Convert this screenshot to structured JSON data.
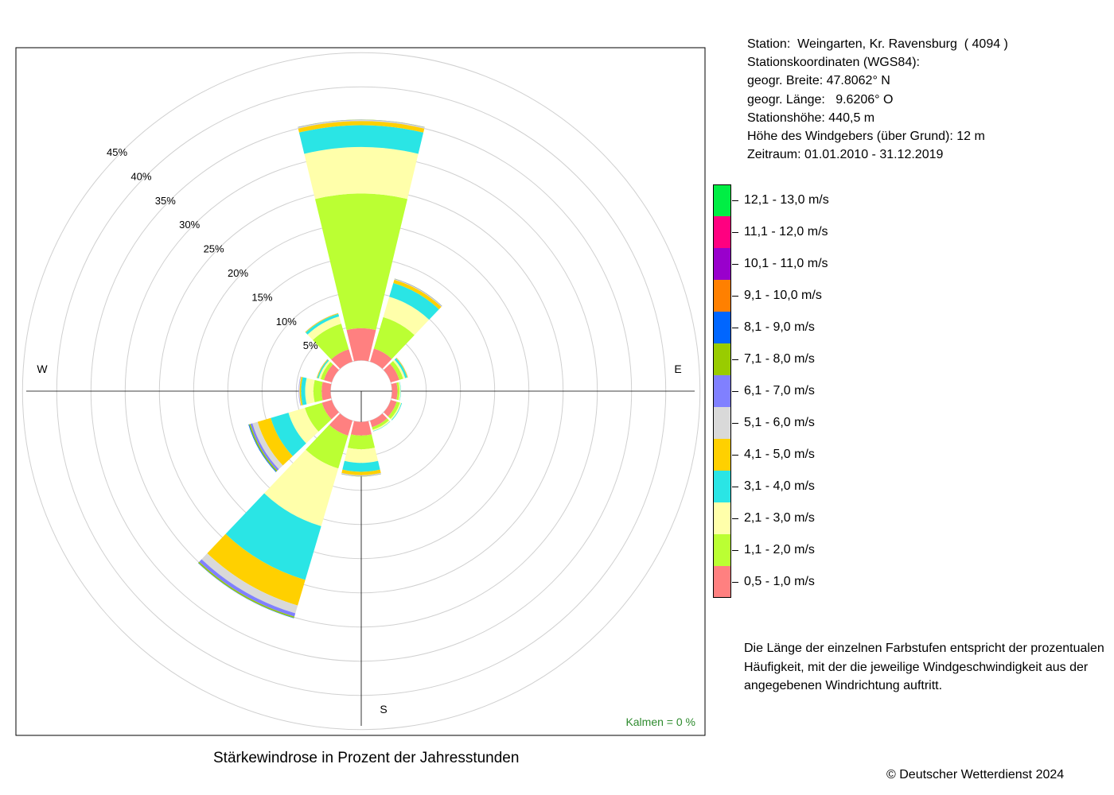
{
  "caption": "Stärkewindrose in Prozent der Jahresstunden",
  "copyright": "© Deutscher Wetterdienst  2024",
  "station_info": [
    "Station:  Weingarten, Kr. Ravensburg  ( 4094 )",
    "Stationskoordinaten (WGS84):",
    "geogr. Breite: 47.8062° N",
    "geogr. Länge:   9.6206° O",
    "Stationshöhe: 440,5 m",
    "Höhe des Windgebers (über Grund): 12 m",
    "Zeitraum: 01.01.2010 - 31.12.2019"
  ],
  "note": "Die Länge der einzelnen Farbstufen entspricht der prozentualen Häufigkeit, mit der die jeweilige Windgeschwindigkeit aus der angegebenen Windrichtung auftritt.",
  "kalmen": "Kalmen  =  0 %",
  "compass": {
    "north": "",
    "east": "E",
    "south": "S",
    "west": "W"
  },
  "chart_data": {
    "type": "wind_rose",
    "title": "Stärkewindrose in Prozent der Jahresstunden",
    "unit": "%",
    "radial_ticks": [
      5,
      10,
      15,
      20,
      25,
      30,
      35,
      40,
      45
    ],
    "radial_tick_labels": [
      "5%",
      "10%",
      "15%",
      "20%",
      "25%",
      "30%",
      "35%",
      "40%",
      "45%"
    ],
    "hole_radius_percent": 4.5,
    "sector_width_deg": 30,
    "classes": [
      {
        "label": "0,5 - 1,0 m/s",
        "color": "#FF8080"
      },
      {
        "label": "1,1 - 2,0 m/s",
        "color": "#BBFF33"
      },
      {
        "label": "2,1 - 3,0 m/s",
        "color": "#FFFFAA"
      },
      {
        "label": "3,1 - 4,0 m/s",
        "color": "#2AE5E5"
      },
      {
        "label": "4,1 - 5,0 m/s",
        "color": "#FFD000"
      },
      {
        "label": "5,1 - 6,0 m/s",
        "color": "#D9D9D9"
      },
      {
        "label": "6,1 - 7,0 m/s",
        "color": "#8080FF"
      },
      {
        "label": "7,1 - 8,0 m/s",
        "color": "#99CC00"
      },
      {
        "label": "8,1 - 9,0 m/s",
        "color": "#0066FF"
      },
      {
        "label": "9,1 - 10,0 m/s",
        "color": "#FF8000"
      },
      {
        "label": "10,1 - 11,0 m/s",
        "color": "#9900CC"
      },
      {
        "label": "11,1 - 12,0 m/s",
        "color": "#FF0080"
      },
      {
        "label": "12,1 - 13,0 m/s",
        "color": "#00EE44"
      }
    ],
    "sectors": [
      {
        "direction": 0,
        "values": [
          4.7,
          19.7,
          6.8,
          3.2,
          0.6,
          0.15,
          0.05,
          0.03
        ]
      },
      {
        "direction": 30,
        "values": [
          2.0,
          4.8,
          3.1,
          2.1,
          0.5,
          0.1,
          0.05,
          0.02
        ]
      },
      {
        "direction": 60,
        "values": [
          1.3,
          0.6,
          0.3,
          0.3,
          0.1,
          0.05
        ]
      },
      {
        "direction": 90,
        "values": [
          0.8,
          0.3,
          0.15,
          0.05
        ]
      },
      {
        "direction": 120,
        "values": [
          0.9,
          0.5,
          0.2,
          0.1
        ]
      },
      {
        "direction": 150,
        "values": [
          1.0,
          0.4,
          0.2,
          0.05
        ]
      },
      {
        "direction": 180,
        "values": [
          2.0,
          2.0,
          2.0,
          1.3,
          0.5,
          0.1,
          0.05,
          0.03
        ]
      },
      {
        "direction": 210,
        "values": [
          2.3,
          5.0,
          8.8,
          8.2,
          3.9,
          1.2,
          0.5,
          0.2,
          0.05
        ]
      },
      {
        "direction": 240,
        "values": [
          1.5,
          2.6,
          2.5,
          2.7,
          2.0,
          0.8,
          0.3,
          0.2,
          0.1
        ]
      },
      {
        "direction": 270,
        "values": [
          1.3,
          1.2,
          1.2,
          0.6,
          0.2,
          0.1,
          0.05
        ]
      },
      {
        "direction": 300,
        "values": [
          1.2,
          0.5,
          0.3,
          0.2,
          0.1,
          0.05
        ]
      },
      {
        "direction": 330,
        "values": [
          1.9,
          3.9,
          1.1,
          0.4,
          0.1,
          0.05
        ]
      }
    ]
  }
}
